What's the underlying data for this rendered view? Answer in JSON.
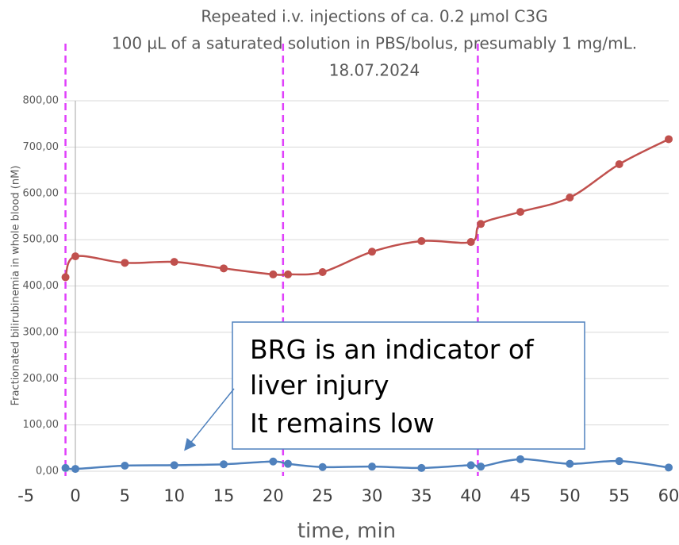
{
  "chart_data": {
    "type": "line",
    "title": [
      "Repeated i.v. injections of ca. 0.2 µmol C3G",
      "100 µL of a saturated solution in PBS/bolus, presumably 1 mg/mL.",
      "18.07.2024"
    ],
    "xlabel": "time, min",
    "ylabel": "Fractionated bilirubinemia in whole blood (nM)",
    "x": [
      -1,
      0,
      5,
      10,
      15,
      20,
      21.5,
      25,
      30,
      35,
      40,
      41,
      45,
      50,
      55,
      60
    ],
    "series": [
      {
        "color": "#c0504d",
        "values": [
          419,
          464,
          450,
          452,
          438,
          425,
          425,
          430,
          474,
          497,
          495,
          534,
          560,
          591,
          663,
          717
        ]
      },
      {
        "color": "#4f81bd",
        "values": [
          7,
          5,
          12,
          13,
          15,
          21,
          16,
          9,
          10,
          7,
          13,
          10,
          26,
          16,
          22,
          8
        ]
      }
    ],
    "injections": [
      -1,
      21,
      40.7
    ],
    "injection_color": "#e040fb",
    "xlim": [
      -5,
      60
    ],
    "xticks": [
      -5,
      0,
      5,
      10,
      15,
      20,
      25,
      30,
      35,
      40,
      45,
      50,
      55,
      60
    ],
    "ylim": [
      0,
      800
    ],
    "yticks": [
      {
        "value": 0,
        "label": "0,00"
      },
      {
        "value": 100,
        "label": "100,00"
      },
      {
        "value": 200,
        "label": "200,00"
      },
      {
        "value": 300,
        "label": "300,00"
      },
      {
        "value": 400,
        "label": "400,00"
      },
      {
        "value": 500,
        "label": "500,00"
      },
      {
        "value": 600,
        "label": "600,00"
      },
      {
        "value": 700,
        "label": "700,00"
      },
      {
        "value": 800,
        "label": "800,00"
      }
    ],
    "grid": true,
    "annotation": [
      "BRG is an indicator of",
      "liver injury",
      "It remains low"
    ]
  }
}
